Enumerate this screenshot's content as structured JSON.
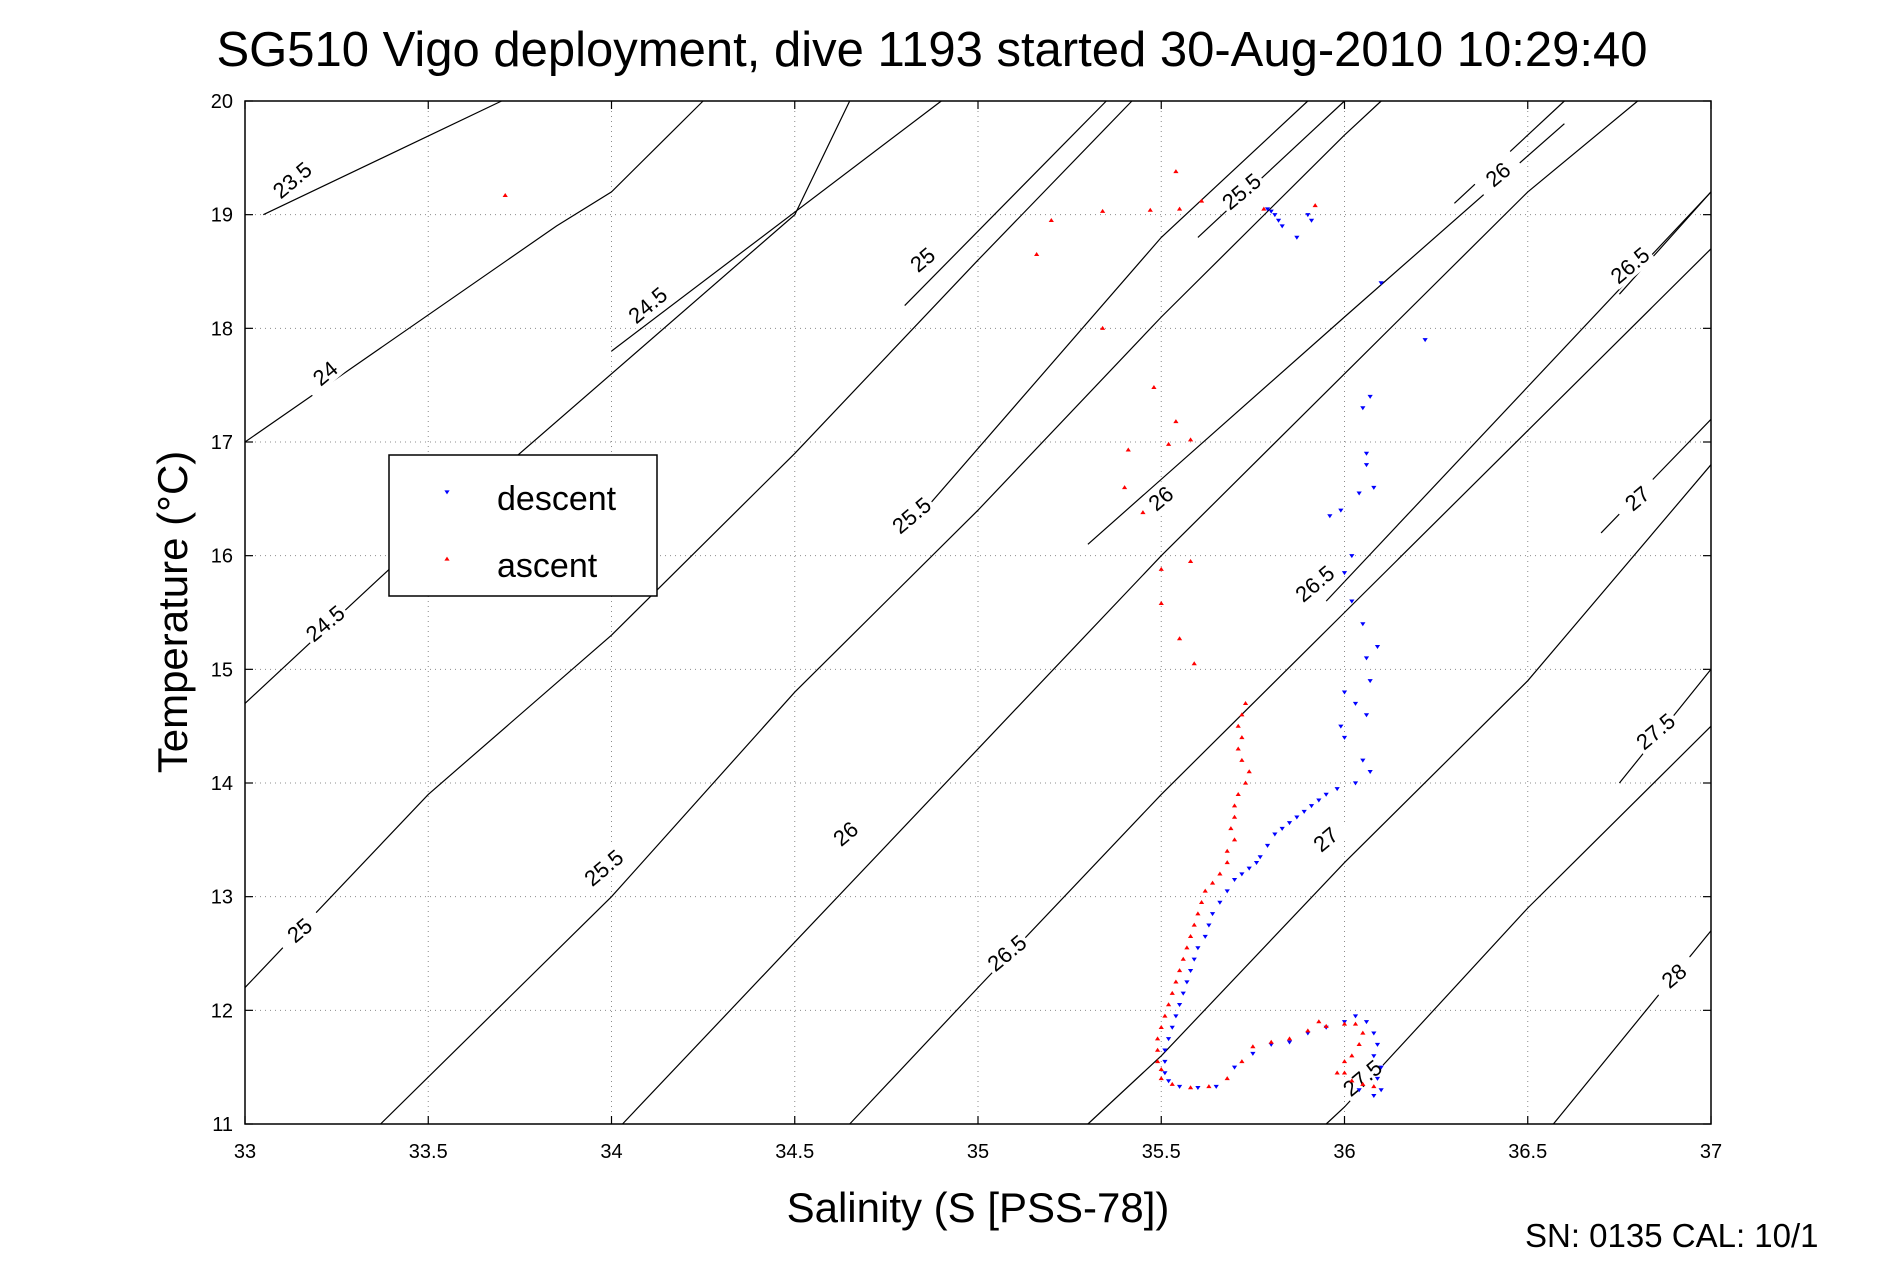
{
  "chart_data": {
    "type": "scatter",
    "title": "SG510 Vigo deployment, dive 1193 started 30-Aug-2010 10:29:40",
    "xlabel": "Salinity (S [PSS-78])",
    "ylabel": "Temperature (°C)",
    "xlim": [
      33,
      37
    ],
    "ylim": [
      11,
      20
    ],
    "xticks": [
      33,
      33.5,
      34,
      34.5,
      35,
      35.5,
      36,
      36.5,
      37
    ],
    "yticks": [
      11,
      12,
      13,
      14,
      15,
      16,
      17,
      18,
      19,
      20
    ],
    "xtick_labels": [
      "33",
      "33.5",
      "34",
      "34.5",
      "35",
      "35.5",
      "36",
      "36.5",
      "37"
    ],
    "ytick_labels": [
      "11",
      "12",
      "13",
      "14",
      "15",
      "16",
      "17",
      "18",
      "19",
      "20"
    ],
    "grid": true,
    "legend": {
      "placement": "center-left",
      "entries": [
        {
          "label": "descent",
          "color": "#0000ff",
          "marker": "triangle-down"
        },
        {
          "label": "ascent",
          "color": "#ff0000",
          "marker": "triangle-up"
        }
      ]
    },
    "density_contours": [
      {
        "value": 23.5,
        "label": "23.5",
        "points": [
          [
            33.05,
            19.0
          ],
          [
            33.7,
            20.0
          ]
        ],
        "label_at": [
          33.13,
          19.3
        ]
      },
      {
        "value": 24,
        "label": "24",
        "points": [
          [
            33.0,
            17.0
          ],
          [
            33.85,
            18.9
          ],
          [
            34.0,
            19.2
          ],
          [
            34.25,
            20.0
          ]
        ],
        "label_at": [
          33.22,
          17.6
        ]
      },
      {
        "value": 24.5,
        "label": "24.5",
        "points": [
          [
            33.0,
            14.7
          ],
          [
            33.5,
            16.2
          ],
          [
            34.5,
            19.0
          ],
          [
            34.65,
            20.0
          ]
        ],
        "label_at": [
          33.22,
          15.4
        ]
      },
      {
        "value": 24.5,
        "label": "24.5",
        "points": [
          [
            34.0,
            17.8
          ],
          [
            34.9,
            20.0
          ]
        ],
        "label_at": [
          34.1,
          18.2
        ]
      },
      {
        "value": 25,
        "label": "25",
        "points": [
          [
            33.0,
            12.2
          ],
          [
            33.5,
            13.9
          ],
          [
            34.0,
            15.3
          ],
          [
            34.5,
            16.9
          ],
          [
            35.0,
            18.6
          ],
          [
            35.42,
            20.0
          ]
        ],
        "label_at": [
          33.15,
          12.7
        ]
      },
      {
        "value": 25,
        "label": "25",
        "points": [
          [
            34.8,
            18.2
          ],
          [
            35.35,
            20.0
          ]
        ],
        "label_at": [
          34.85,
          18.6
        ]
      },
      {
        "value": 25.5,
        "label": "25.5",
        "points": [
          [
            33.37,
            11.0
          ],
          [
            34.0,
            13.0
          ],
          [
            34.5,
            14.8
          ],
          [
            35.0,
            16.4
          ],
          [
            35.5,
            18.1
          ],
          [
            36.0,
            19.7
          ],
          [
            36.1,
            20.0
          ]
        ],
        "label_at": [
          33.98,
          13.25
        ]
      },
      {
        "value": 25.5,
        "label": "25.5",
        "points": [
          [
            34.8,
            16.2
          ],
          [
            35.5,
            18.8
          ],
          [
            35.9,
            20.0
          ]
        ],
        "label_at": [
          34.82,
          16.35
        ]
      },
      {
        "value": 25.5,
        "label": "25.5",
        "points": [
          [
            35.6,
            18.8
          ],
          [
            36.0,
            20.0
          ]
        ],
        "label_at": [
          35.72,
          19.2
        ]
      },
      {
        "value": 26,
        "label": "26",
        "points": [
          [
            34.03,
            11.0
          ],
          [
            34.5,
            12.6
          ],
          [
            35.0,
            14.3
          ],
          [
            35.5,
            16.0
          ],
          [
            36.0,
            17.6
          ],
          [
            36.5,
            19.2
          ],
          [
            36.8,
            20.0
          ]
        ],
        "label_at": [
          34.64,
          13.55
        ]
      },
      {
        "value": 26,
        "label": "26",
        "points": [
          [
            35.3,
            16.1
          ],
          [
            36.0,
            18.1
          ],
          [
            36.6,
            19.8
          ]
        ],
        "label_at": [
          35.5,
          16.5
        ]
      },
      {
        "value": 26,
        "label": "26",
        "points": [
          [
            36.3,
            19.1
          ],
          [
            36.6,
            20.0
          ]
        ],
        "label_at": [
          36.42,
          19.35
        ]
      },
      {
        "value": 26.5,
        "label": "26.5",
        "points": [
          [
            34.65,
            11.0
          ],
          [
            35.0,
            12.2
          ],
          [
            35.5,
            13.9
          ],
          [
            36.0,
            15.5
          ],
          [
            36.5,
            17.1
          ],
          [
            37.0,
            18.7
          ]
        ],
        "label_at": [
          35.08,
          12.5
        ]
      },
      {
        "value": 26.5,
        "label": "26.5",
        "points": [
          [
            35.95,
            15.6
          ],
          [
            37.0,
            19.2
          ]
        ],
        "label_at": [
          35.92,
          15.75
        ]
      },
      {
        "value": 26.5,
        "label": "26.5",
        "points": [
          [
            36.75,
            18.3
          ],
          [
            37.0,
            19.2
          ]
        ],
        "label_at": [
          36.78,
          18.55
        ]
      },
      {
        "value": 27,
        "label": "27",
        "points": [
          [
            35.3,
            11.0
          ],
          [
            35.5,
            11.6
          ],
          [
            36.0,
            13.3
          ],
          [
            36.5,
            14.9
          ],
          [
            37.0,
            16.8
          ]
        ],
        "label_at": [
          35.95,
          13.5
        ]
      },
      {
        "value": 27,
        "label": "27",
        "points": [
          [
            36.7,
            16.2
          ],
          [
            37.0,
            17.2
          ]
        ],
        "label_at": [
          36.8,
          16.5
        ]
      },
      {
        "value": 27.5,
        "label": "27.5",
        "points": [
          [
            35.95,
            11.0
          ],
          [
            36.0,
            11.15
          ],
          [
            36.5,
            12.9
          ],
          [
            37.0,
            14.5
          ]
        ],
        "label_at": [
          36.05,
          11.4
        ]
      },
      {
        "value": 27.5,
        "label": "27.5",
        "points": [
          [
            36.75,
            14.0
          ],
          [
            37.0,
            15.0
          ]
        ],
        "label_at": [
          36.85,
          14.45
        ]
      },
      {
        "value": 28,
        "label": "28",
        "points": [
          [
            36.57,
            11.0
          ],
          [
            37.0,
            12.7
          ]
        ],
        "label_at": [
          36.9,
          12.3
        ]
      }
    ],
    "series": [
      {
        "name": "descent",
        "color": "#0000ff",
        "marker": "triangle-down",
        "points": [
          [
            35.79,
            19.05
          ],
          [
            35.8,
            19.03
          ],
          [
            35.81,
            19.0
          ],
          [
            35.82,
            18.95
          ],
          [
            35.83,
            18.9
          ],
          [
            35.87,
            18.8
          ],
          [
            35.9,
            19.0
          ],
          [
            35.91,
            18.95
          ],
          [
            36.1,
            18.4
          ],
          [
            36.22,
            17.9
          ],
          [
            36.07,
            17.4
          ],
          [
            36.05,
            17.3
          ],
          [
            36.06,
            16.9
          ],
          [
            36.06,
            16.8
          ],
          [
            36.08,
            16.6
          ],
          [
            36.04,
            16.55
          ],
          [
            35.99,
            16.4
          ],
          [
            35.96,
            16.35
          ],
          [
            36.02,
            16.0
          ],
          [
            36.0,
            15.85
          ],
          [
            36.02,
            15.6
          ],
          [
            36.05,
            15.4
          ],
          [
            36.09,
            15.2
          ],
          [
            36.06,
            15.1
          ],
          [
            36.07,
            14.9
          ],
          [
            36.0,
            14.8
          ],
          [
            36.03,
            14.7
          ],
          [
            36.06,
            14.6
          ],
          [
            35.99,
            14.5
          ],
          [
            36.0,
            14.4
          ],
          [
            36.05,
            14.2
          ],
          [
            36.07,
            14.1
          ],
          [
            36.03,
            14.0
          ],
          [
            35.98,
            13.95
          ],
          [
            35.95,
            13.9
          ],
          [
            35.93,
            13.85
          ],
          [
            35.91,
            13.8
          ],
          [
            35.89,
            13.75
          ],
          [
            35.87,
            13.7
          ],
          [
            35.85,
            13.65
          ],
          [
            35.83,
            13.6
          ],
          [
            35.81,
            13.55
          ],
          [
            35.79,
            13.45
          ],
          [
            35.77,
            13.35
          ],
          [
            35.76,
            13.3
          ],
          [
            35.74,
            13.25
          ],
          [
            35.72,
            13.2
          ],
          [
            35.7,
            13.15
          ],
          [
            35.68,
            13.05
          ],
          [
            35.66,
            12.95
          ],
          [
            35.64,
            12.85
          ],
          [
            35.63,
            12.75
          ],
          [
            35.62,
            12.65
          ],
          [
            35.6,
            12.55
          ],
          [
            35.59,
            12.45
          ],
          [
            35.58,
            12.35
          ],
          [
            35.57,
            12.25
          ],
          [
            35.56,
            12.15
          ],
          [
            35.55,
            12.05
          ],
          [
            35.54,
            11.95
          ],
          [
            35.53,
            11.85
          ],
          [
            35.52,
            11.75
          ],
          [
            35.51,
            11.65
          ],
          [
            35.51,
            11.55
          ],
          [
            35.51,
            11.45
          ],
          [
            35.52,
            11.38
          ],
          [
            35.55,
            11.33
          ],
          [
            35.6,
            11.32
          ],
          [
            35.65,
            11.33
          ],
          [
            35.7,
            11.5
          ],
          [
            35.75,
            11.62
          ],
          [
            35.8,
            11.7
          ],
          [
            35.85,
            11.72
          ],
          [
            35.9,
            11.8
          ],
          [
            35.95,
            11.85
          ],
          [
            36.0,
            11.9
          ],
          [
            36.03,
            11.95
          ],
          [
            36.06,
            11.9
          ],
          [
            36.08,
            11.8
          ],
          [
            36.09,
            11.7
          ],
          [
            36.08,
            11.6
          ],
          [
            36.1,
            11.5
          ],
          [
            36.09,
            11.4
          ],
          [
            36.1,
            11.3
          ],
          [
            36.08,
            11.25
          ],
          [
            36.04,
            11.3
          ]
        ]
      },
      {
        "name": "ascent",
        "color": "#ff0000",
        "marker": "triangle-up",
        "points": [
          [
            33.71,
            19.17
          ],
          [
            35.54,
            19.38
          ],
          [
            35.61,
            19.12
          ],
          [
            35.55,
            19.05
          ],
          [
            35.47,
            19.04
          ],
          [
            35.34,
            19.03
          ],
          [
            35.2,
            18.95
          ],
          [
            35.16,
            18.65
          ],
          [
            35.34,
            18.0
          ],
          [
            35.48,
            17.48
          ],
          [
            35.54,
            17.18
          ],
          [
            35.52,
            16.98
          ],
          [
            35.58,
            17.02
          ],
          [
            35.41,
            16.93
          ],
          [
            35.4,
            16.6
          ],
          [
            35.45,
            16.38
          ],
          [
            35.58,
            15.95
          ],
          [
            35.5,
            15.88
          ],
          [
            35.5,
            15.58
          ],
          [
            35.55,
            15.27
          ],
          [
            35.59,
            15.05
          ],
          [
            35.73,
            14.7
          ],
          [
            35.72,
            14.6
          ],
          [
            35.71,
            14.5
          ],
          [
            35.72,
            14.4
          ],
          [
            35.71,
            14.3
          ],
          [
            35.72,
            14.2
          ],
          [
            35.74,
            14.1
          ],
          [
            35.73,
            14.0
          ],
          [
            35.71,
            13.9
          ],
          [
            35.7,
            13.8
          ],
          [
            35.7,
            13.7
          ],
          [
            35.69,
            13.6
          ],
          [
            35.7,
            13.5
          ],
          [
            35.68,
            13.4
          ],
          [
            35.68,
            13.3
          ],
          [
            35.66,
            13.2
          ],
          [
            35.64,
            13.12
          ],
          [
            35.62,
            13.05
          ],
          [
            35.61,
            12.95
          ],
          [
            35.6,
            12.85
          ],
          [
            35.59,
            12.75
          ],
          [
            35.58,
            12.65
          ],
          [
            35.57,
            12.55
          ],
          [
            35.56,
            12.45
          ],
          [
            35.55,
            12.35
          ],
          [
            35.54,
            12.25
          ],
          [
            35.53,
            12.15
          ],
          [
            35.52,
            12.05
          ],
          [
            35.51,
            11.95
          ],
          [
            35.5,
            11.85
          ],
          [
            35.49,
            11.75
          ],
          [
            35.49,
            11.65
          ],
          [
            35.49,
            11.55
          ],
          [
            35.5,
            11.48
          ],
          [
            35.5,
            11.4
          ],
          [
            35.53,
            11.35
          ],
          [
            35.58,
            11.32
          ],
          [
            35.63,
            11.33
          ],
          [
            35.68,
            11.4
          ],
          [
            35.72,
            11.55
          ],
          [
            35.75,
            11.68
          ],
          [
            35.8,
            11.72
          ],
          [
            35.85,
            11.75
          ],
          [
            35.9,
            11.82
          ],
          [
            35.95,
            11.86
          ],
          [
            36.0,
            11.88
          ],
          [
            36.03,
            11.88
          ],
          [
            36.05,
            11.8
          ],
          [
            36.04,
            11.7
          ],
          [
            36.02,
            11.6
          ],
          [
            36.0,
            11.55
          ],
          [
            36.0,
            11.45
          ],
          [
            36.02,
            11.38
          ],
          [
            36.05,
            11.35
          ],
          [
            36.08,
            11.33
          ],
          [
            35.98,
            11.45
          ],
          [
            35.93,
            11.9
          ],
          [
            35.92,
            19.08
          ],
          [
            35.78,
            19.05
          ]
        ]
      }
    ]
  },
  "footer": {
    "text": "SN: 0135  CAL: 10/1"
  }
}
